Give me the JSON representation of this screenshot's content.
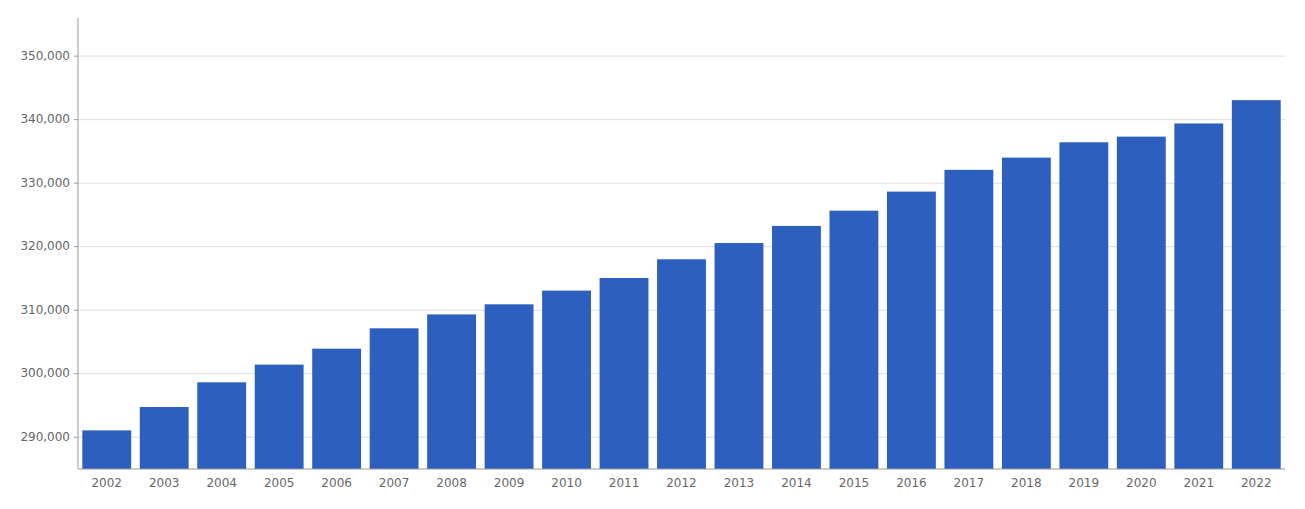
{
  "chart_data": {
    "type": "bar",
    "categories": [
      "2002",
      "2003",
      "2004",
      "2005",
      "2006",
      "2007",
      "2008",
      "2009",
      "2010",
      "2011",
      "2012",
      "2013",
      "2014",
      "2015",
      "2016",
      "2017",
      "2018",
      "2019",
      "2020",
      "2021",
      "2022"
    ],
    "values": [
      291081,
      294757,
      298646,
      301430,
      303945,
      307149,
      309338,
      310925,
      313087,
      315068,
      318017,
      320572,
      323267,
      325670,
      328672,
      332099,
      334019,
      336436,
      337322,
      339399,
      343069
    ],
    "color": "#2d5fbf",
    "ylim": [
      285000,
      356000
    ],
    "yticks": [
      {
        "value": 290000,
        "label": "290,000"
      },
      {
        "value": 300000,
        "label": "300,000"
      },
      {
        "value": 310000,
        "label": "310,000"
      },
      {
        "value": 320000,
        "label": "320,000"
      },
      {
        "value": 330000,
        "label": "330,000"
      },
      {
        "value": 340000,
        "label": "340,000"
      },
      {
        "value": 350000,
        "label": "350,000"
      }
    ],
    "grid": true
  }
}
